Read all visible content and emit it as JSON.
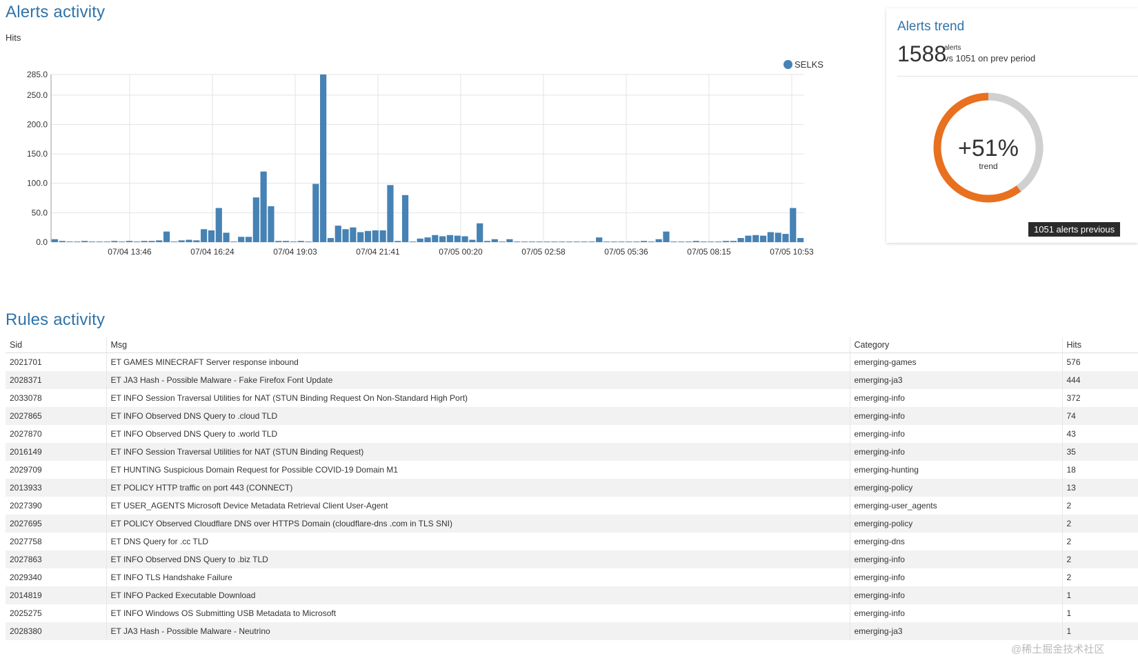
{
  "alerts": {
    "title": "Alerts activity",
    "hits_label": "Hits",
    "legend": "SELKS",
    "series_color": "#4682b4"
  },
  "chart_data": {
    "type": "bar",
    "title": "",
    "ylabel": "Hits",
    "ylim": [
      0,
      285
    ],
    "y_ticks": [
      "0.0",
      "50.0",
      "100.0",
      "150.0",
      "200.0",
      "250.0",
      "285.0"
    ],
    "x_ticks": [
      "07/04 13:46",
      "07/04 16:24",
      "07/04 19:03",
      "07/04 21:41",
      "07/05 00:20",
      "07/05 02:58",
      "07/05 05:36",
      "07/05 08:15",
      "07/05 10:53"
    ],
    "grid": true,
    "legend_position": "top-right",
    "series": [
      {
        "name": "SELKS",
        "values": [
          5,
          2,
          1,
          1,
          2,
          1,
          1,
          1,
          2,
          1,
          2,
          1,
          2,
          2,
          3,
          18,
          1,
          3,
          4,
          3,
          22,
          20,
          58,
          16,
          1,
          9,
          9,
          76,
          120,
          61,
          2,
          2,
          1,
          2,
          1,
          99,
          285,
          7,
          28,
          22,
          25,
          17,
          19,
          20,
          20,
          97,
          2,
          80,
          1,
          6,
          8,
          12,
          10,
          12,
          11,
          10,
          4,
          32,
          2,
          5,
          1,
          5,
          1,
          1,
          1,
          1,
          1,
          1,
          1,
          1,
          1,
          1,
          1,
          8,
          1,
          1,
          1,
          1,
          1,
          2,
          1,
          5,
          18,
          1,
          1,
          1,
          2,
          1,
          1,
          1,
          2,
          2,
          7,
          11,
          12,
          11,
          17,
          16,
          14,
          58,
          7
        ]
      }
    ]
  },
  "trend": {
    "title": "Alerts trend",
    "count": "1588",
    "unit": "alerts",
    "compare": "vs 1051 on prev period",
    "pct": "+51%",
    "pct_label": "trend",
    "tooltip": "1051 alerts previous",
    "current": 1588,
    "previous": 1051,
    "current_color": "#e8701f",
    "previous_color": "#d0d0d0"
  },
  "rules": {
    "title": "Rules activity",
    "headers": {
      "sid": "Sid",
      "msg": "Msg",
      "category": "Category",
      "hits": "Hits"
    },
    "rows": [
      {
        "sid": "2021701",
        "msg": "ET GAMES MINECRAFT Server response inbound",
        "category": "emerging-games",
        "hits": "576"
      },
      {
        "sid": "2028371",
        "msg": "ET JA3 Hash - Possible Malware - Fake Firefox Font Update",
        "category": "emerging-ja3",
        "hits": "444"
      },
      {
        "sid": "2033078",
        "msg": "ET INFO Session Traversal Utilities for NAT (STUN Binding Request On Non-Standard High Port)",
        "category": "emerging-info",
        "hits": "372"
      },
      {
        "sid": "2027865",
        "msg": "ET INFO Observed DNS Query to .cloud TLD",
        "category": "emerging-info",
        "hits": "74"
      },
      {
        "sid": "2027870",
        "msg": "ET INFO Observed DNS Query to .world TLD",
        "category": "emerging-info",
        "hits": "43"
      },
      {
        "sid": "2016149",
        "msg": "ET INFO Session Traversal Utilities for NAT (STUN Binding Request)",
        "category": "emerging-info",
        "hits": "35"
      },
      {
        "sid": "2029709",
        "msg": "ET HUNTING Suspicious Domain Request for Possible COVID-19 Domain M1",
        "category": "emerging-hunting",
        "hits": "18"
      },
      {
        "sid": "2013933",
        "msg": "ET POLICY HTTP traffic on port 443 (CONNECT)",
        "category": "emerging-policy",
        "hits": "13"
      },
      {
        "sid": "2027390",
        "msg": "ET USER_AGENTS Microsoft Device Metadata Retrieval Client User-Agent",
        "category": "emerging-user_agents",
        "hits": "2"
      },
      {
        "sid": "2027695",
        "msg": "ET POLICY Observed Cloudflare DNS over HTTPS Domain (cloudflare-dns .com in TLS SNI)",
        "category": "emerging-policy",
        "hits": "2"
      },
      {
        "sid": "2027758",
        "msg": "ET DNS Query for .cc TLD",
        "category": "emerging-dns",
        "hits": "2"
      },
      {
        "sid": "2027863",
        "msg": "ET INFO Observed DNS Query to .biz TLD",
        "category": "emerging-info",
        "hits": "2"
      },
      {
        "sid": "2029340",
        "msg": "ET INFO TLS Handshake Failure",
        "category": "emerging-info",
        "hits": "2"
      },
      {
        "sid": "2014819",
        "msg": "ET INFO Packed Executable Download",
        "category": "emerging-info",
        "hits": "1"
      },
      {
        "sid": "2025275",
        "msg": "ET INFO Windows OS Submitting USB Metadata to Microsoft",
        "category": "emerging-info",
        "hits": "1"
      },
      {
        "sid": "2028380",
        "msg": "ET JA3 Hash - Possible Malware - Neutrino",
        "category": "emerging-ja3",
        "hits": "1"
      }
    ]
  },
  "watermark": "@稀土掘金技术社区"
}
